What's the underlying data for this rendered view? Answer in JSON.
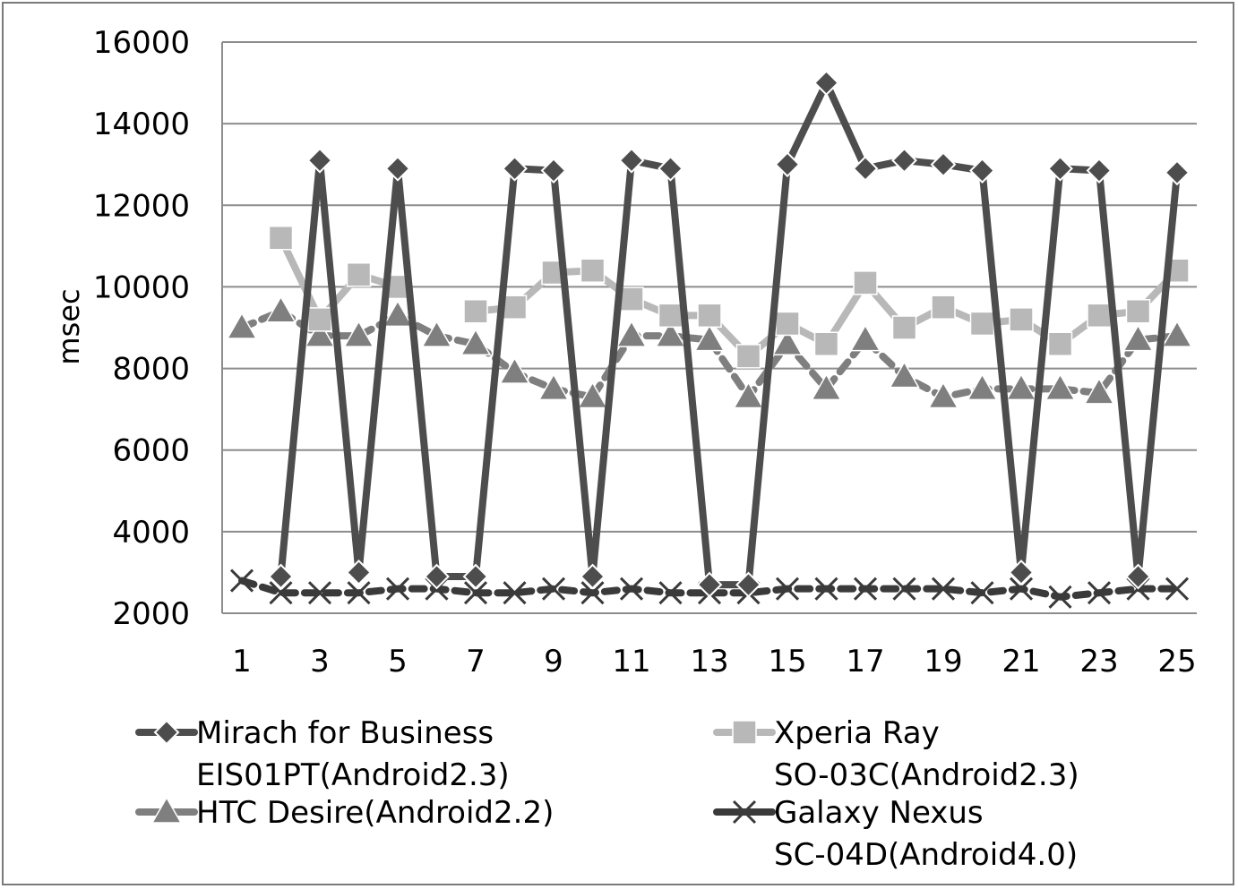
{
  "chart_data": {
    "type": "line",
    "title": "",
    "xlabel": "",
    "ylabel": "msec",
    "ylim": [
      2000,
      16000
    ],
    "yticks": [
      "16000",
      "14000",
      "12000",
      "10000",
      "8000",
      "6000",
      "4000",
      "2000"
    ],
    "xticks": [
      "1",
      "3",
      "5",
      "7",
      "9",
      "11",
      "13",
      "15",
      "17",
      "19",
      "21",
      "23",
      "25"
    ],
    "x": [
      1,
      2,
      3,
      4,
      5,
      6,
      7,
      8,
      9,
      10,
      11,
      12,
      13,
      14,
      15,
      16,
      17,
      18,
      19,
      20,
      21,
      22,
      23,
      24,
      25
    ],
    "grid": "horizontal",
    "legend_position": "bottom",
    "series": [
      {
        "name_lines": [
          "Mirach for Business",
          "EIS01PT(Android2.3)"
        ],
        "marker": "diamond",
        "color": "#4d4d4d",
        "dash": "solid",
        "values": [
          null,
          2900,
          13100,
          3000,
          12900,
          2900,
          2900,
          12900,
          12850,
          2900,
          13100,
          12900,
          2700,
          2700,
          13000,
          15000,
          12900,
          13100,
          13000,
          12850,
          3000,
          12900,
          12850,
          2900,
          12800
        ]
      },
      {
        "name_lines": [
          "Xperia Ray",
          "SO-03C(Android2.3)"
        ],
        "marker": "square",
        "color": "#b8b8b8",
        "dash": "solid",
        "values": [
          null,
          11200,
          9200,
          10300,
          10000,
          null,
          9400,
          9500,
          10350,
          10400,
          9700,
          9300,
          9300,
          8300,
          9100,
          8600,
          10100,
          9000,
          9500,
          9100,
          9200,
          8600,
          9300,
          9400,
          10400
        ]
      },
      {
        "name_lines": [
          "HTC Desire(Android2.2)"
        ],
        "marker": "triangle",
        "color": "#7f7f7f",
        "dash": "dashed",
        "values": [
          9000,
          9400,
          8800,
          8800,
          9300,
          8800,
          8600,
          7900,
          7500,
          7300,
          8800,
          8800,
          8700,
          7300,
          8600,
          7500,
          8700,
          7800,
          7300,
          7500,
          7500,
          7500,
          7400,
          8700,
          8800
        ]
      },
      {
        "name_lines": [
          "Galaxy Nexus",
          "SC-04D(Android4.0)"
        ],
        "marker": "x",
        "color": "#3a3a3a",
        "dash": "dashed",
        "values": [
          2800,
          2500,
          2500,
          2500,
          2600,
          2600,
          2500,
          2500,
          2600,
          2500,
          2600,
          2500,
          2500,
          2500,
          2600,
          2600,
          2600,
          2600,
          2600,
          2500,
          2600,
          2400,
          2500,
          2600,
          2600
        ]
      }
    ]
  }
}
